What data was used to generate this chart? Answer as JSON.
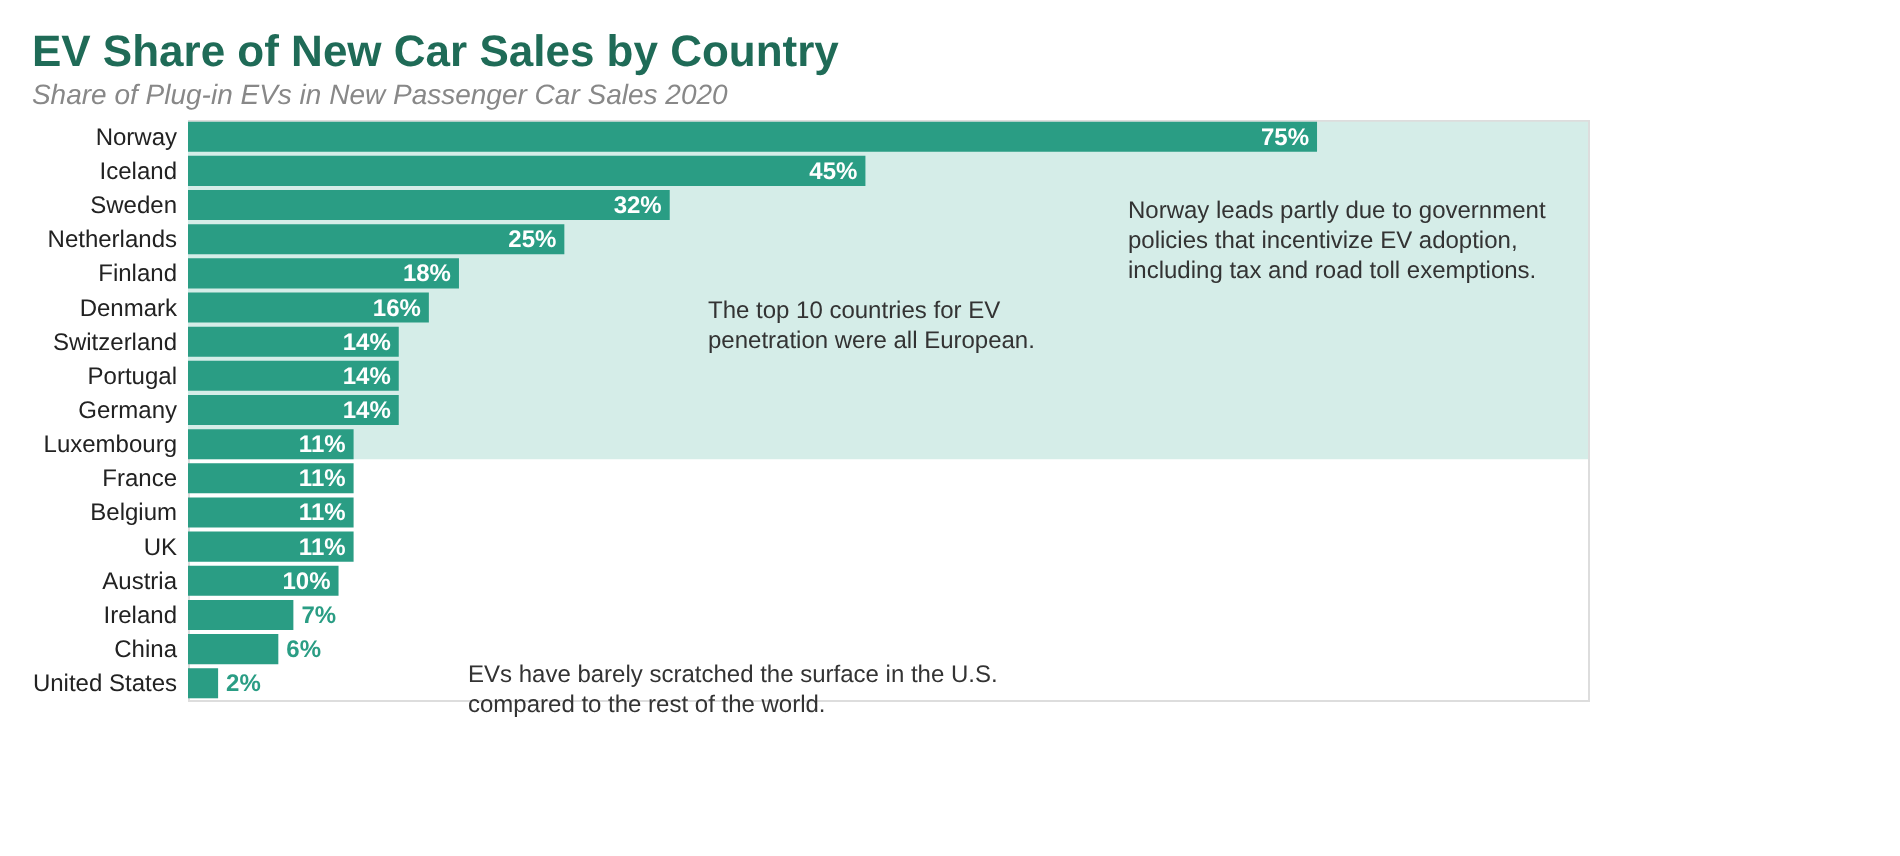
{
  "chart_data": {
    "type": "bar",
    "orientation": "horizontal",
    "title": "EV Share of New Car Sales by Country",
    "subtitle": "Share of Plug-in EVs in New Passenger Car Sales 2020",
    "categories": [
      "Norway",
      "Iceland",
      "Sweden",
      "Netherlands",
      "Finland",
      "Denmark",
      "Switzerland",
      "Portugal",
      "Germany",
      "Luxembourg",
      "France",
      "Belgium",
      "UK",
      "Austria",
      "Ireland",
      "China",
      "United States"
    ],
    "values": [
      75,
      45,
      32,
      25,
      18,
      16,
      14,
      14,
      14,
      11,
      11,
      11,
      11,
      10,
      7,
      6,
      2
    ],
    "value_labels": [
      "75%",
      "45%",
      "32%",
      "25%",
      "18%",
      "16%",
      "14%",
      "14%",
      "14%",
      "11%",
      "11%",
      "11%",
      "11%",
      "10%",
      "7%",
      "6%",
      "2%"
    ],
    "color": "#2a9d84",
    "bands": [
      {
        "axis": "y",
        "from": "Norway",
        "to": "Luxembourg",
        "color": "#d5ede8"
      }
    ],
    "annotations": [
      "Norway leads partly due to government policies that incentivize EV adoption, including tax and road toll exemptions.",
      "The top 10 countries for EV penetration were all European.",
      "EVs have barely scratched the surface in the U.S. compared to the rest of the world."
    ]
  }
}
